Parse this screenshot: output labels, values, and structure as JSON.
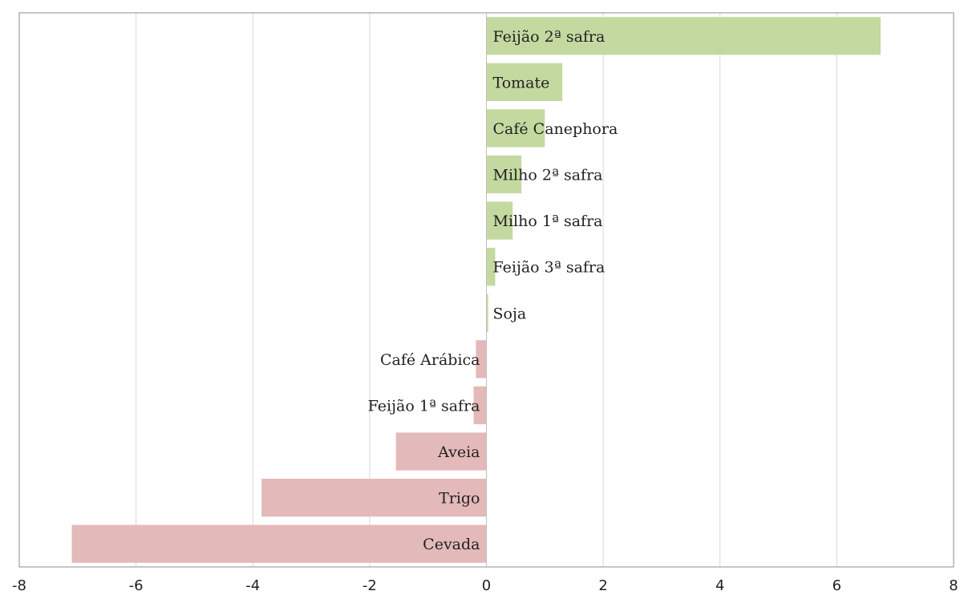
{
  "chart_data": {
    "type": "bar",
    "orientation": "horizontal",
    "title": "",
    "xlabel": "",
    "ylabel": "",
    "xlim": [
      -8,
      8
    ],
    "xticks": [
      -8,
      -6,
      -4,
      -2,
      0,
      2,
      4,
      6,
      8
    ],
    "grid": "vertical",
    "legend": "none",
    "colors": {
      "positive": "#c4d9a0",
      "negative": "#e4b9b9",
      "grid": "#d9d9d9",
      "frame": "#8c8c8c"
    },
    "categories": [
      "Feijão 2ª safra",
      "Tomate",
      "Café Canephora",
      "Milho 2ª safra",
      "Milho 1ª safra",
      "Feijão 3ª safra",
      "Soja",
      "Café Arábica",
      "Feijão 1ª safra",
      "Aveia",
      "Trigo",
      "Cevada"
    ],
    "values": [
      6.75,
      1.3,
      1.0,
      0.6,
      0.45,
      0.15,
      0.03,
      -0.18,
      -0.22,
      -1.55,
      -3.85,
      -7.1
    ]
  }
}
